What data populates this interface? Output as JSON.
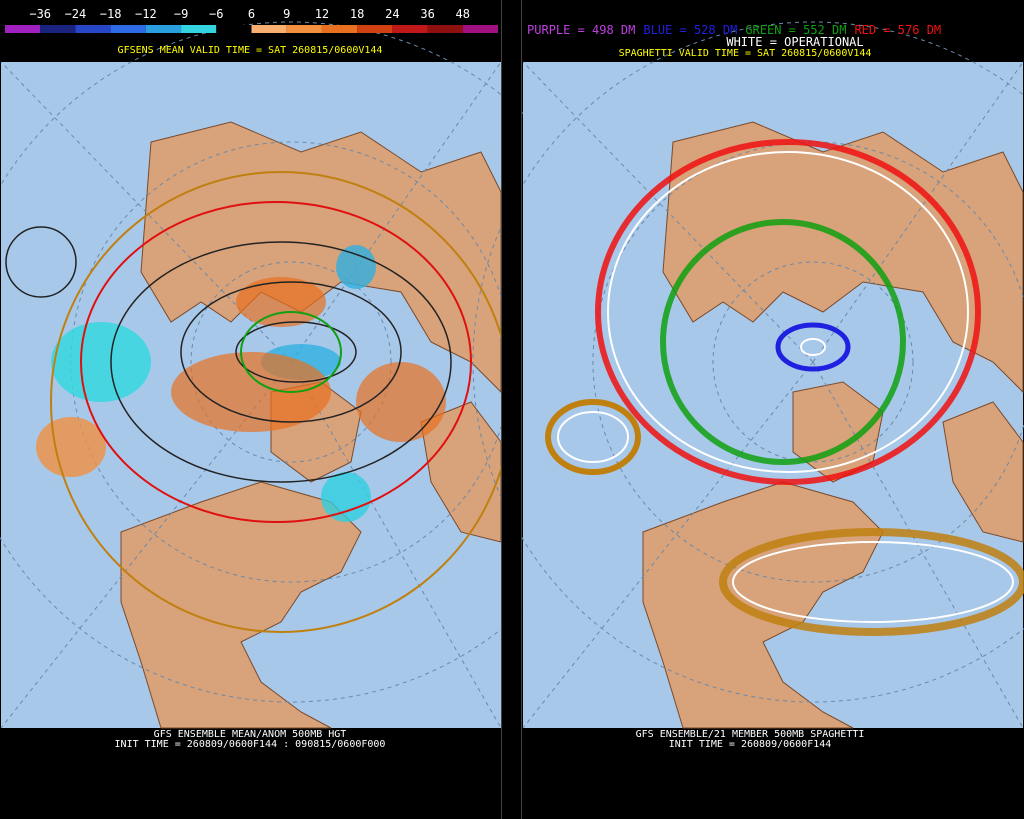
{
  "left_panel": {
    "colorbar": {
      "labels": [
        "−36",
        "−24",
        "−18",
        "−12",
        "−9",
        "−6",
        "6",
        "9",
        "12",
        "18",
        "24",
        "36",
        "48"
      ],
      "colors": [
        "#a020c0",
        "#1a237e",
        "#2846c8",
        "#2e6ae6",
        "#2a9fe0",
        "#33d4e0",
        "#000000",
        "#f8b070",
        "#f09040",
        "#e87020",
        "#d04010",
        "#c01818",
        "#901010",
        "#a01080"
      ]
    },
    "valid_time": "GFSENS MEAN VALID TIME = SAT 260815/0600V144",
    "footer": [
      "GFS ENSEMBLE MEAN/ANOM 500MB HGT",
      "INIT TIME = 260809/0600F144 : 090815/0600F000"
    ]
  },
  "right_panel": {
    "legend": [
      {
        "label": "PURPLE = 498 DM",
        "color": "#c040e0"
      },
      {
        "label": "BLUE = 528 DM",
        "color": "#2020e0"
      },
      {
        "label": "GREEN = 552 DM",
        "color": "#10a010"
      },
      {
        "label": "RED = 576 DM",
        "color": "#f01010"
      }
    ],
    "operational": "WHITE = OPERATIONAL",
    "valid_time": "SPAGHETTI VALID TIME = SAT 260815/0600V144",
    "footer": [
      "GFS ENSEMBLE/21 MEMBER 500MB SPAGHETTI",
      "INIT TIME = 260809/0600F144"
    ]
  }
}
